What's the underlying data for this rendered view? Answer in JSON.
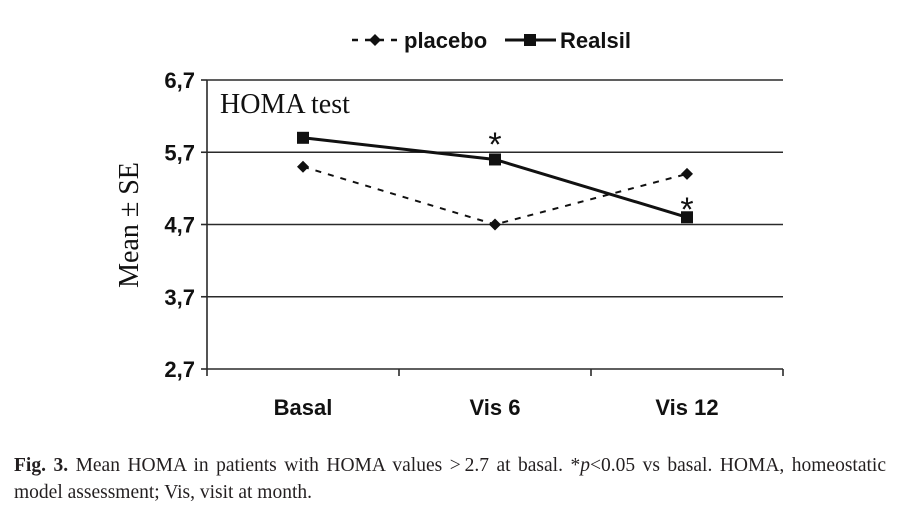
{
  "chart_data": {
    "type": "line",
    "title": "HOMA test",
    "xlabel": "",
    "ylabel": "Mean ± SE",
    "categories": [
      "Basal",
      "Vis 6",
      "Vis 12"
    ],
    "ylim": [
      2.7,
      6.7
    ],
    "yticks": [
      6.7,
      5.7,
      4.7,
      3.7,
      2.7
    ],
    "ytick_labels": [
      "6,7",
      "5,7",
      "4,7",
      "3,7",
      "2,7"
    ],
    "grid": true,
    "legend_position": "top-center",
    "series": [
      {
        "name": "placebo",
        "values": [
          5.5,
          4.7,
          5.4
        ],
        "line_style": "dashed",
        "marker": "diamond",
        "color": "#111111"
      },
      {
        "name": "Realsil",
        "values": [
          5.9,
          5.6,
          4.8
        ],
        "line_style": "solid",
        "marker": "square",
        "color": "#111111"
      }
    ],
    "annotations": [
      {
        "text": "*",
        "category": "Vis 6",
        "y": 5.95
      },
      {
        "text": "*",
        "category": "Vis 12",
        "y": 5.05
      }
    ]
  },
  "caption": {
    "label": "Fig. 3.",
    "text_before_p": " Mean HOMA in patients with HOMA values > 2.7 at basal. *",
    "p_symbol": "p",
    "text_after_p": "<0.05 vs basal. HOMA, homeostatic model assessment; Vis, visit at month."
  }
}
